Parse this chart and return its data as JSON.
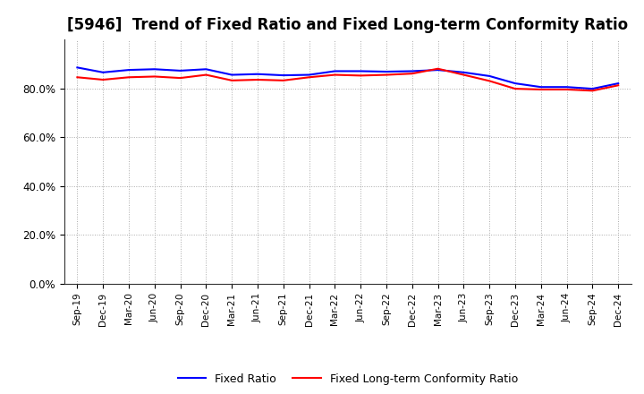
{
  "title": "[5946]  Trend of Fixed Ratio and Fixed Long-term Conformity Ratio",
  "x_labels": [
    "Sep-19",
    "Dec-19",
    "Mar-20",
    "Jun-20",
    "Sep-20",
    "Dec-20",
    "Mar-21",
    "Jun-21",
    "Sep-21",
    "Dec-21",
    "Mar-22",
    "Jun-22",
    "Sep-22",
    "Dec-22",
    "Mar-23",
    "Jun-23",
    "Sep-23",
    "Dec-23",
    "Mar-24",
    "Jun-24",
    "Sep-24",
    "Dec-24"
  ],
  "fixed_ratio": [
    88.5,
    86.5,
    87.5,
    87.8,
    87.2,
    87.8,
    85.5,
    85.8,
    85.3,
    85.5,
    87.0,
    87.0,
    86.8,
    87.0,
    87.5,
    86.5,
    85.0,
    82.0,
    80.5,
    80.5,
    79.8,
    82.0
  ],
  "fixed_lt_ratio": [
    84.5,
    83.5,
    84.5,
    84.8,
    84.2,
    85.5,
    83.2,
    83.5,
    83.2,
    84.5,
    85.5,
    85.2,
    85.5,
    86.0,
    88.0,
    85.5,
    83.0,
    79.8,
    79.5,
    79.5,
    79.0,
    81.2
  ],
  "fixed_ratio_color": "#0000ff",
  "fixed_lt_ratio_color": "#ff0000",
  "ylim": [
    0,
    100
  ],
  "yticks": [
    0,
    20,
    40,
    60,
    80
  ],
  "ytick_labels": [
    "0.0%",
    "20.0%",
    "40.0%",
    "60.0%",
    "80.0%"
  ],
  "background_color": "#ffffff",
  "grid_color": "#aaaaaa",
  "legend_fixed_ratio": "Fixed Ratio",
  "legend_fixed_lt_ratio": "Fixed Long-term Conformity Ratio",
  "title_fontsize": 12,
  "line_width": 1.5
}
